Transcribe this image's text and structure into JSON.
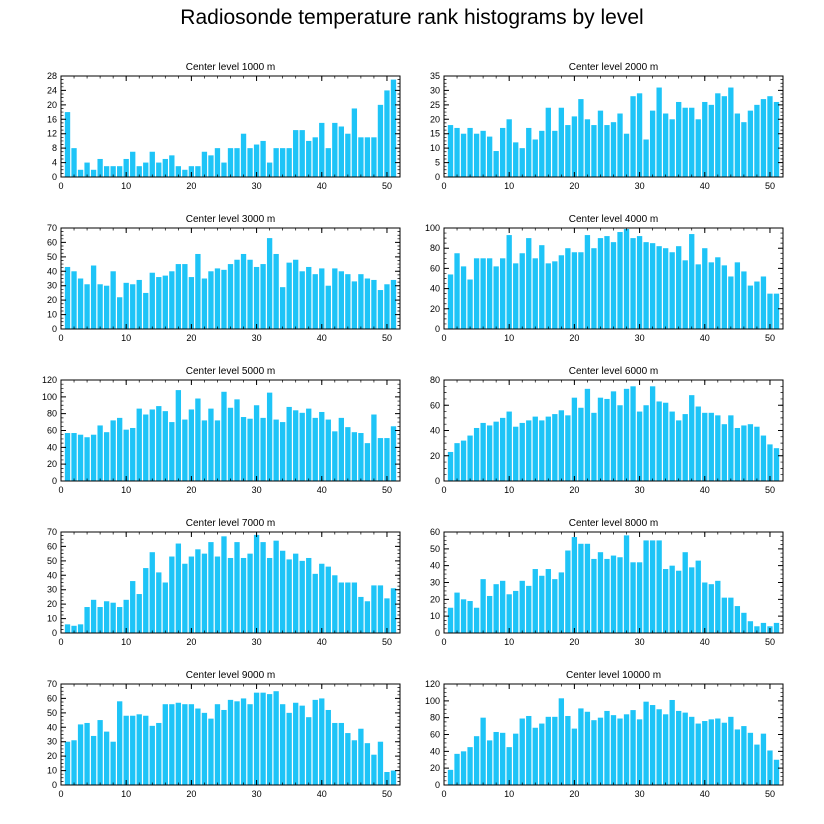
{
  "title": "Radiosonde temperature rank histograms by level",
  "colors": {
    "bar": "#1EC4F7",
    "axis": "#000000",
    "background": "#FFFFFF"
  },
  "chart_data": [
    {
      "type": "bar",
      "title": "Center level 1000 m",
      "xlim": [
        0,
        52
      ],
      "ylim": [
        0,
        28
      ],
      "xticks": [
        0,
        10,
        20,
        30,
        40,
        50
      ],
      "yticks": [
        0,
        4,
        8,
        12,
        16,
        20,
        24,
        28
      ],
      "values": [
        18,
        8,
        2,
        4,
        2,
        5,
        3,
        3,
        3,
        5,
        7,
        3,
        4,
        7,
        4,
        5,
        6,
        3,
        2,
        3,
        3,
        7,
        6,
        8,
        4,
        8,
        8,
        12,
        8,
        9,
        10,
        4,
        8,
        8,
        8,
        13,
        13,
        10,
        11,
        15,
        8,
        15,
        14,
        12,
        19,
        11,
        11,
        11,
        20,
        24,
        27
      ]
    },
    {
      "type": "bar",
      "title": "Center level 2000 m",
      "xlim": [
        0,
        52
      ],
      "ylim": [
        0,
        35
      ],
      "xticks": [
        0,
        10,
        20,
        30,
        40,
        50
      ],
      "yticks": [
        0,
        5,
        10,
        15,
        20,
        25,
        30,
        35
      ],
      "values": [
        18,
        17,
        15,
        17,
        15,
        16,
        14,
        9,
        17,
        20,
        12,
        10,
        17,
        13,
        16,
        24,
        16,
        24,
        18,
        21,
        27,
        20,
        18,
        23,
        18,
        19,
        22,
        15,
        28,
        29,
        13,
        23,
        31,
        22,
        20,
        26,
        24,
        24,
        20,
        26,
        25,
        29,
        28,
        31,
        22,
        19,
        23,
        25,
        27,
        28,
        26
      ]
    },
    {
      "type": "bar",
      "title": "Center level 3000 m",
      "xlim": [
        0,
        52
      ],
      "ylim": [
        0,
        70
      ],
      "xticks": [
        0,
        10,
        20,
        30,
        40,
        50
      ],
      "yticks": [
        0,
        10,
        20,
        30,
        40,
        50,
        60,
        70
      ],
      "values": [
        43,
        40,
        35,
        31,
        44,
        31,
        30,
        40,
        22,
        32,
        31,
        34,
        25,
        39,
        36,
        37,
        40,
        45,
        45,
        36,
        52,
        35,
        40,
        42,
        41,
        45,
        48,
        52,
        48,
        43,
        45,
        63,
        52,
        29,
        46,
        48,
        40,
        43,
        38,
        42,
        30,
        42,
        40,
        38,
        33,
        38,
        35,
        34,
        27,
        31,
        34
      ]
    },
    {
      "type": "bar",
      "title": "Center level 4000 m",
      "xlim": [
        0,
        52
      ],
      "ylim": [
        0,
        100
      ],
      "xticks": [
        0,
        10,
        20,
        30,
        40,
        50
      ],
      "yticks": [
        0,
        20,
        40,
        60,
        80,
        100
      ],
      "values": [
        54,
        75,
        62,
        49,
        70,
        70,
        70,
        62,
        70,
        93,
        65,
        75,
        90,
        70,
        83,
        65,
        67,
        73,
        80,
        76,
        76,
        93,
        80,
        90,
        92,
        86,
        96,
        99,
        90,
        92,
        86,
        85,
        82,
        80,
        76,
        82,
        68,
        94,
        64,
        80,
        66,
        71,
        63,
        52,
        66,
        57,
        43,
        47,
        52,
        35,
        35
      ]
    },
    {
      "type": "bar",
      "title": "Center level 5000 m",
      "xlim": [
        0,
        52
      ],
      "ylim": [
        0,
        120
      ],
      "xticks": [
        0,
        10,
        20,
        30,
        40,
        50
      ],
      "yticks": [
        0,
        20,
        40,
        60,
        80,
        100,
        120
      ],
      "values": [
        57,
        57,
        55,
        52,
        55,
        66,
        58,
        72,
        75,
        61,
        63,
        86,
        79,
        85,
        89,
        83,
        70,
        108,
        73,
        85,
        98,
        72,
        86,
        72,
        106,
        87,
        97,
        76,
        74,
        90,
        75,
        105,
        73,
        70,
        88,
        84,
        81,
        86,
        75,
        82,
        73,
        59,
        75,
        64,
        58,
        57,
        45,
        79,
        51,
        51,
        65
      ]
    },
    {
      "type": "bar",
      "title": "Center level 6000 m",
      "xlim": [
        0,
        52
      ],
      "ylim": [
        0,
        80
      ],
      "xticks": [
        0,
        10,
        20,
        30,
        40,
        50
      ],
      "yticks": [
        0,
        20,
        40,
        60,
        80
      ],
      "values": [
        23,
        30,
        32,
        36,
        42,
        46,
        44,
        47,
        50,
        55,
        43,
        46,
        48,
        51,
        48,
        51,
        53,
        56,
        52,
        66,
        58,
        73,
        54,
        66,
        65,
        71,
        60,
        73,
        75,
        55,
        60,
        75,
        63,
        62,
        55,
        48,
        53,
        68,
        59,
        54,
        54,
        52,
        45,
        52,
        42,
        44,
        45,
        43,
        36,
        29,
        26
      ]
    },
    {
      "type": "bar",
      "title": "Center level 7000 m",
      "xlim": [
        0,
        52
      ],
      "ylim": [
        0,
        70
      ],
      "xticks": [
        0,
        10,
        20,
        30,
        40,
        50
      ],
      "yticks": [
        0,
        10,
        20,
        30,
        40,
        50,
        60,
        70
      ],
      "values": [
        6,
        5,
        6,
        18,
        23,
        18,
        22,
        21,
        18,
        23,
        36,
        27,
        45,
        56,
        42,
        35,
        53,
        62,
        48,
        53,
        58,
        55,
        63,
        53,
        67,
        52,
        63,
        52,
        55,
        68,
        63,
        52,
        64,
        57,
        51,
        55,
        50,
        52,
        41,
        48,
        46,
        40,
        35,
        35,
        35,
        25,
        22,
        33,
        33,
        24,
        31
      ]
    },
    {
      "type": "bar",
      "title": "Center level 8000 m",
      "xlim": [
        0,
        52
      ],
      "ylim": [
        0,
        60
      ],
      "xticks": [
        0,
        10,
        20,
        30,
        40,
        50
      ],
      "yticks": [
        0,
        10,
        20,
        30,
        40,
        50,
        60
      ],
      "values": [
        15,
        24,
        20,
        19,
        15,
        32,
        22,
        29,
        31,
        23,
        25,
        31,
        28,
        38,
        34,
        38,
        32,
        36,
        49,
        57,
        53,
        53,
        44,
        48,
        44,
        46,
        45,
        58,
        42,
        42,
        55,
        55,
        55,
        38,
        40,
        37,
        48,
        39,
        43,
        30,
        29,
        31,
        21,
        21,
        16,
        12,
        7,
        4,
        6,
        4,
        6
      ]
    },
    {
      "type": "bar",
      "title": "Center level 9000 m",
      "xlim": [
        0,
        52
      ],
      "ylim": [
        0,
        70
      ],
      "xticks": [
        0,
        10,
        20,
        30,
        40,
        50
      ],
      "yticks": [
        0,
        10,
        20,
        30,
        40,
        50,
        60,
        70
      ],
      "values": [
        30,
        31,
        42,
        43,
        34,
        45,
        37,
        30,
        58,
        48,
        48,
        49,
        48,
        41,
        43,
        56,
        56,
        57,
        56,
        56,
        53,
        50,
        46,
        56,
        52,
        59,
        58,
        60,
        56,
        64,
        64,
        63,
        65,
        56,
        50,
        57,
        55,
        47,
        59,
        60,
        52,
        43,
        43,
        36,
        31,
        39,
        29,
        21,
        30,
        9,
        10
      ]
    },
    {
      "type": "bar",
      "title": "Center level 10000 m",
      "xlim": [
        0,
        52
      ],
      "ylim": [
        0,
        120
      ],
      "xticks": [
        0,
        10,
        20,
        30,
        40,
        50
      ],
      "yticks": [
        0,
        20,
        40,
        60,
        80,
        100,
        120
      ],
      "values": [
        18,
        37,
        40,
        45,
        58,
        80,
        53,
        63,
        62,
        45,
        61,
        79,
        82,
        68,
        73,
        81,
        81,
        103,
        82,
        67,
        91,
        87,
        77,
        80,
        88,
        83,
        79,
        84,
        89,
        78,
        99,
        95,
        90,
        84,
        101,
        88,
        86,
        81,
        73,
        76,
        78,
        79,
        74,
        81,
        66,
        70,
        62,
        48,
        61,
        41,
        30
      ]
    }
  ]
}
